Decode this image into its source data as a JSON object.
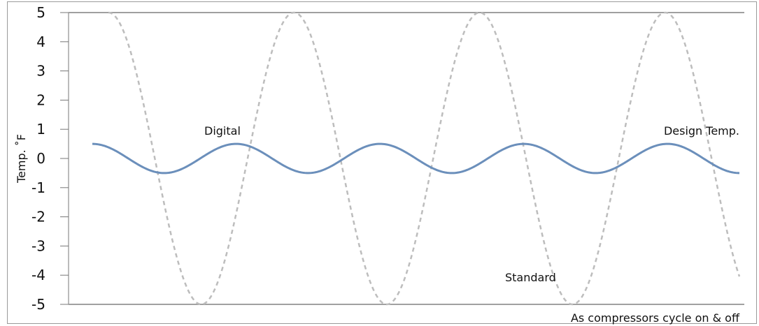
{
  "chart_data": {
    "type": "line",
    "title": "",
    "xlabel": "As compressors cycle on & off",
    "ylabel": "Temp. ˚F",
    "ylim": [
      -5,
      5
    ],
    "yticks": [
      "5",
      "4",
      "3",
      "2",
      "1",
      "0",
      "-1",
      "-2",
      "-3",
      "-4",
      "-5"
    ],
    "grid": false,
    "series": [
      {
        "name": "Digital",
        "color": "#6b8fbb",
        "style": "solid",
        "shape": "periodic",
        "amplitude": 0.5,
        "cycles": 4.5,
        "start_value": 0.5
      },
      {
        "name": "Standard",
        "color": "#bdbdbd",
        "style": "dashed",
        "shape": "periodic",
        "amplitude": 5,
        "cycles": 3.4,
        "start_value": 5
      }
    ],
    "annotations": {
      "design_temp": "Design Temp."
    }
  }
}
